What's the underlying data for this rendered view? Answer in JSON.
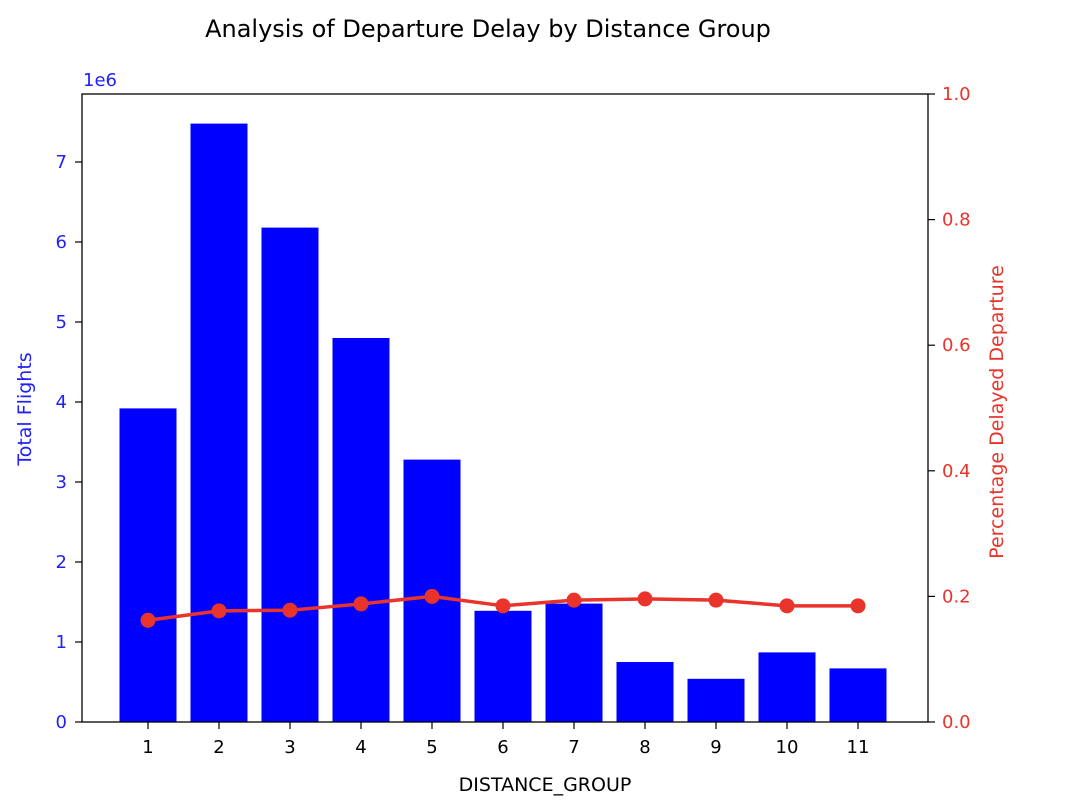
{
  "chart_data": {
    "type": "bar",
    "title": "Analysis of Departure Delay by Distance Group",
    "xlabel": "DISTANCE_GROUP",
    "categories": [
      "1",
      "2",
      "3",
      "4",
      "5",
      "6",
      "7",
      "8",
      "9",
      "10",
      "11"
    ],
    "series": [
      {
        "type": "bar",
        "axis": "left",
        "color": "#0000ff",
        "values": [
          3920000,
          7480000,
          6180000,
          4800000,
          3280000,
          1390000,
          1480000,
          750000,
          540000,
          870000,
          670000
        ]
      },
      {
        "type": "line",
        "axis": "right",
        "color": "#e8342a",
        "values": [
          0.162,
          0.177,
          0.178,
          0.188,
          0.2,
          0.185,
          0.194,
          0.196,
          0.194,
          0.185,
          0.185
        ]
      }
    ],
    "y_left": {
      "label": "Total Flights",
      "multiplier_label": "1e6",
      "scale": 1000000,
      "ticks": [
        0,
        1,
        2,
        3,
        4,
        5,
        6,
        7
      ],
      "ylim": [
        0,
        7.85
      ],
      "color": "#1f1fff"
    },
    "y_right": {
      "label": "Percentage Delayed Departure",
      "ticks": [
        "0.0",
        "0.2",
        "0.4",
        "0.6",
        "0.8",
        "1.0"
      ],
      "ylim": [
        0,
        1.0
      ],
      "color": "#e8342a"
    },
    "grid": false,
    "legend": "none"
  }
}
